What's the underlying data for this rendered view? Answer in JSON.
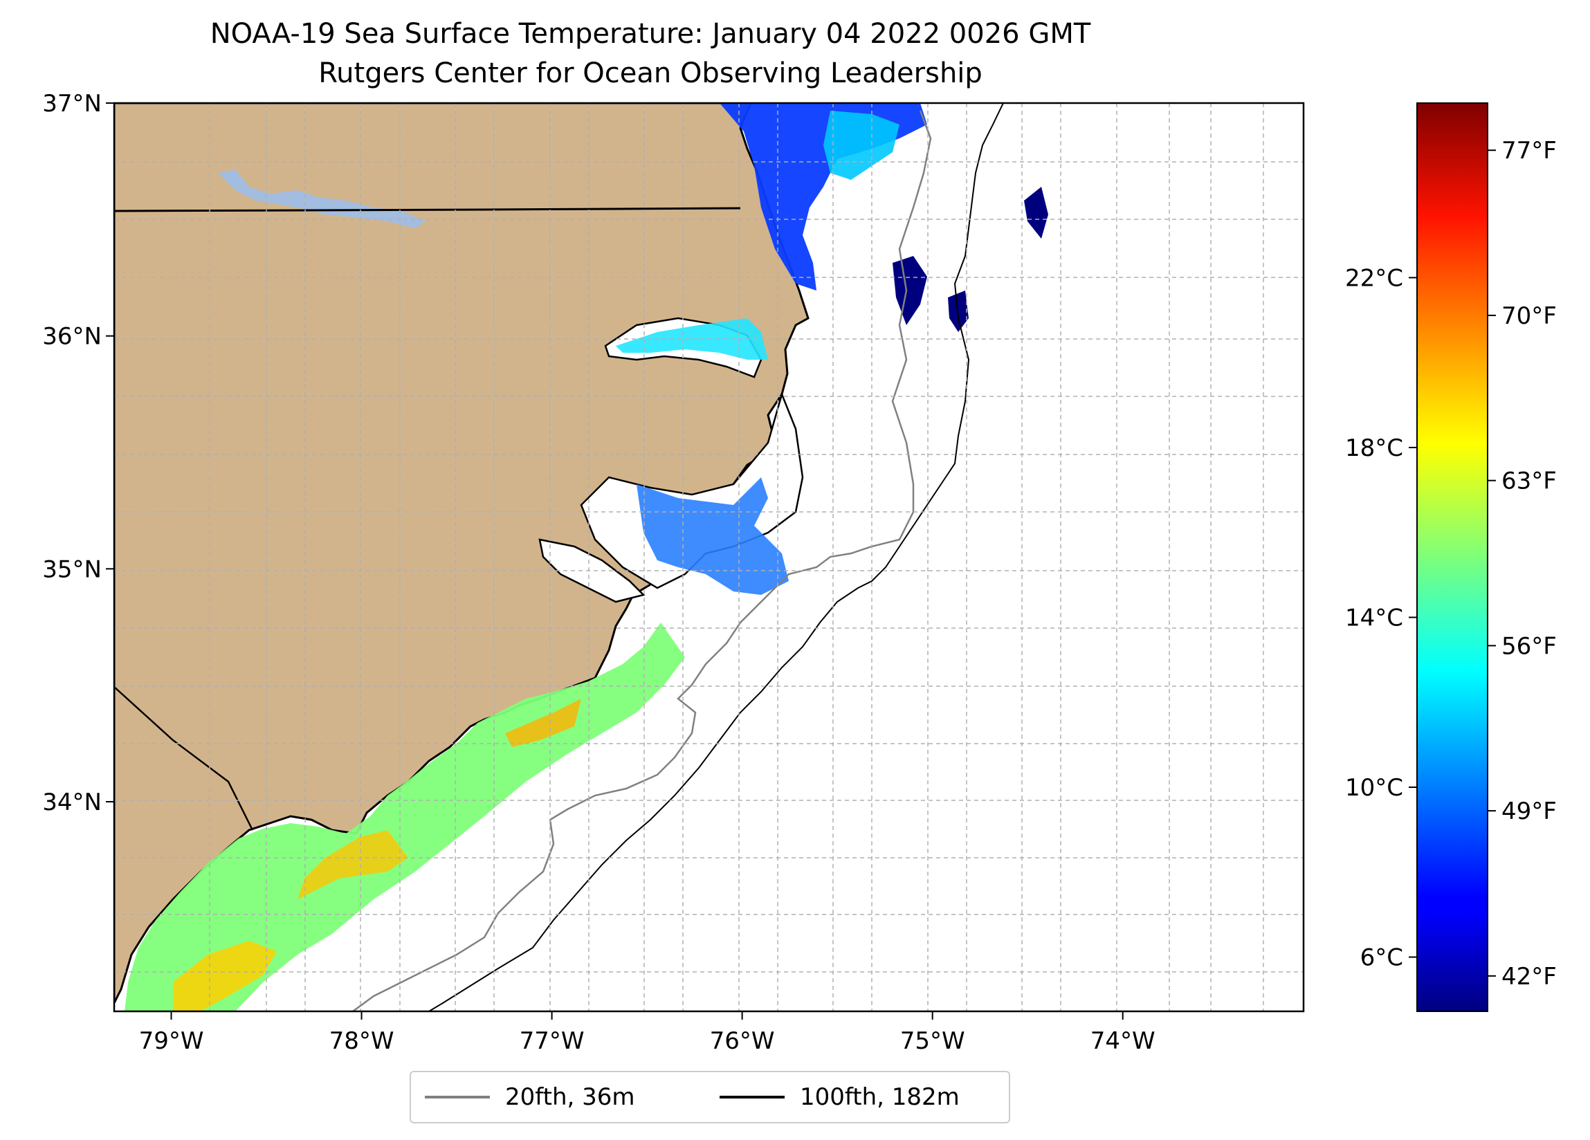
{
  "title": "NOAA-19 Sea Surface Temperature: January 04 2022 0026 GMT",
  "subtitle": "Rutgers Center for Ocean Observing Leadership",
  "map": {
    "lon_ticks": [
      {
        "lon": -79,
        "label": "79°W"
      },
      {
        "lon": -78,
        "label": "78°W"
      },
      {
        "lon": -77,
        "label": "77°W"
      },
      {
        "lon": -76,
        "label": "76°W"
      },
      {
        "lon": -75,
        "label": "75°W"
      },
      {
        "lon": -74,
        "label": "74°W"
      }
    ],
    "lat_ticks": [
      {
        "lat": 37,
        "label": "37°N"
      },
      {
        "lat": 36,
        "label": "36°N"
      },
      {
        "lat": 35,
        "label": "35°N"
      },
      {
        "lat": 34,
        "label": "34°N"
      }
    ],
    "extent": {
      "lon": [
        -79.3,
        -73.05
      ],
      "lat": [
        33.1,
        37.0
      ]
    },
    "land_color": "#d2b48c",
    "lake_color": "#a3bde0",
    "grid": true
  },
  "colorbar": {
    "colormap": "jet",
    "celsius_ticks": [
      {
        "value": 22,
        "label": "22°C"
      },
      {
        "value": 18,
        "label": "18°C"
      },
      {
        "value": 14,
        "label": "14°C"
      },
      {
        "value": 10,
        "label": "10°C"
      },
      {
        "value": 6,
        "label": "6°C"
      }
    ],
    "fahrenheit_ticks": [
      {
        "value": 77,
        "label": "77°F"
      },
      {
        "value": 70,
        "label": "70°F"
      },
      {
        "value": 63,
        "label": "63°F"
      },
      {
        "value": 56,
        "label": "56°F"
      },
      {
        "value": 49,
        "label": "49°F"
      },
      {
        "value": 42,
        "label": "42°F"
      }
    ],
    "range_f": [
      40.5,
      79
    ]
  },
  "legend": [
    {
      "label": "20fth, 36m",
      "color": "#808080"
    },
    {
      "label": "100fth, 182m",
      "color": "#000000"
    }
  ]
}
